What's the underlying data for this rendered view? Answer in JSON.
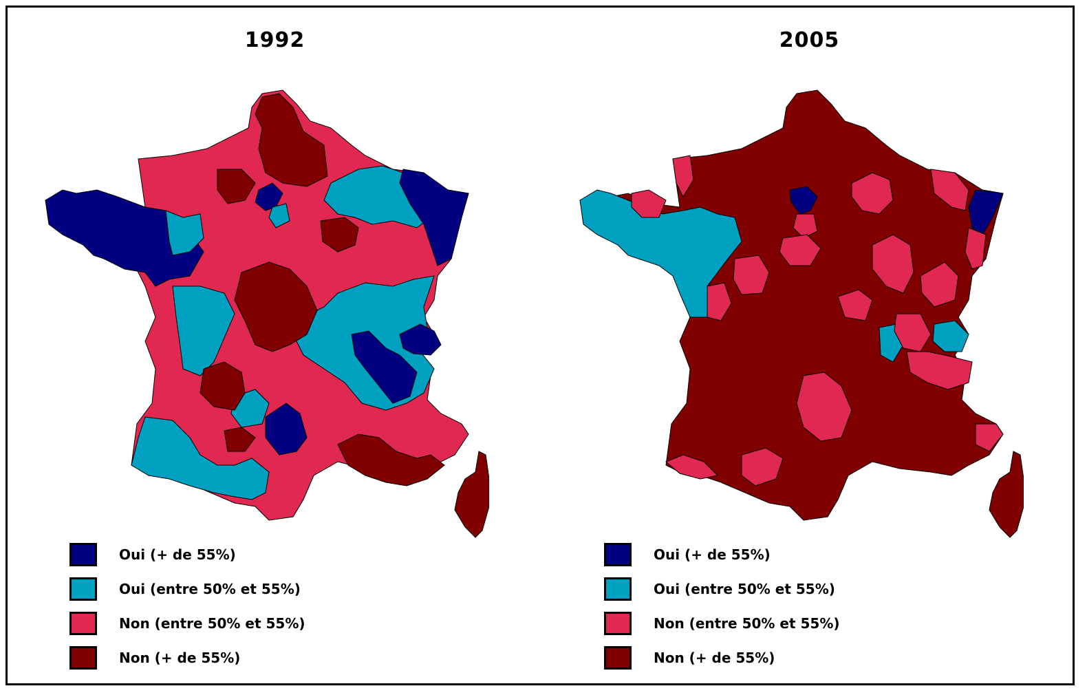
{
  "colors": {
    "oui_strong": "#000080",
    "oui_weak": "#00A0C0",
    "non_weak": "#E02850",
    "non_strong": "#800000",
    "border": "#000000"
  },
  "maps": [
    {
      "title": "1992",
      "legend": [
        {
          "label": "Oui (+ de 55%)",
          "color": "#000080"
        },
        {
          "label": "Oui (entre 50% et 55%)",
          "color": "#00A0C0"
        },
        {
          "label": "Non (entre 50% et 55%)",
          "color": "#E02850"
        },
        {
          "label": "Non (+ de 55%)",
          "color": "#800000"
        }
      ]
    },
    {
      "title": "2005",
      "legend": [
        {
          "label": "Oui (+ de 55%)",
          "color": "#000080"
        },
        {
          "label": "Oui (entre 50% et 55%)",
          "color": "#00A0C0"
        },
        {
          "label": "Non (entre 50% et 55%)",
          "color": "#E02850"
        },
        {
          "label": "Non (+ de 55%)",
          "color": "#800000"
        }
      ]
    }
  ]
}
